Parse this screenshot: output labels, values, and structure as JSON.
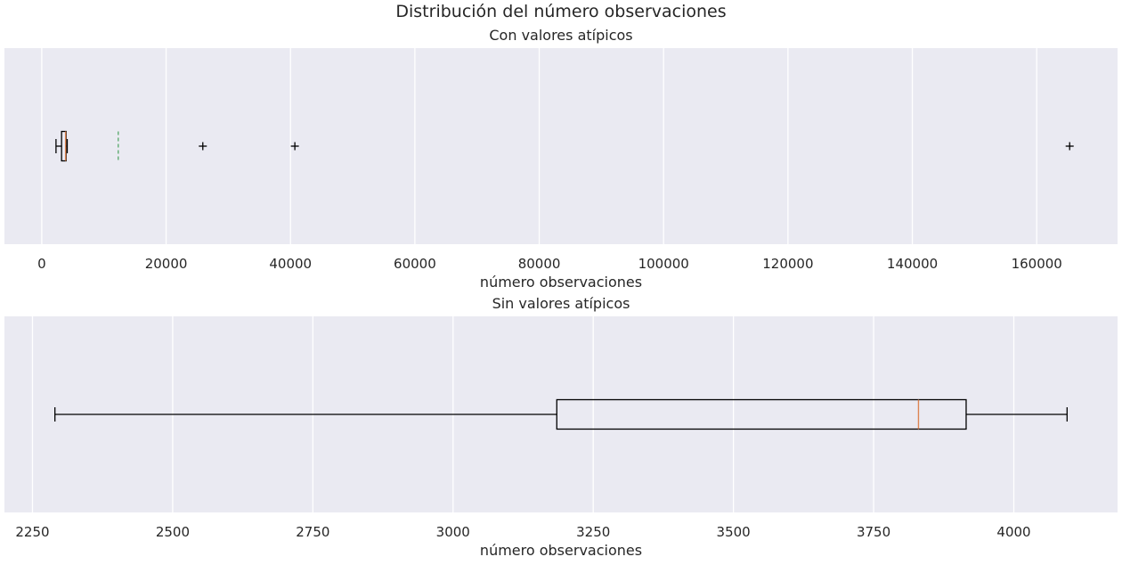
{
  "title": "Distribución del número observaciones",
  "chart_data": [
    {
      "type": "boxplot",
      "orientation": "horizontal",
      "subtitle": "Con valores atípicos",
      "xlabel": "número observaciones",
      "ylabel": "",
      "xlim": [
        -6000,
        173000
      ],
      "xticks": [
        0,
        20000,
        40000,
        60000,
        80000,
        100000,
        120000,
        140000,
        160000
      ],
      "grid": true,
      "box": {
        "whisker_low": 2290,
        "q1": 3185,
        "median": 3830,
        "q3": 3915,
        "whisker_high": 4095,
        "mean": 12300,
        "outliers": [
          25900,
          40700,
          165300
        ]
      },
      "mean_line": true
    },
    {
      "type": "boxplot",
      "orientation": "horizontal",
      "subtitle": "Sin valores atípicos",
      "xlabel": "número observaciones",
      "ylabel": "",
      "xlim": [
        2200,
        4185
      ],
      "xticks": [
        2250,
        2500,
        2750,
        3000,
        3250,
        3500,
        3750,
        4000
      ],
      "grid": true,
      "box": {
        "whisker_low": 2290,
        "q1": 3185,
        "median": 3830,
        "q3": 3915,
        "whisker_high": 4095,
        "outliers": []
      },
      "mean_line": false
    }
  ],
  "colors": {
    "plot_background": "#EAEAF2",
    "grid": "#FFFFFF",
    "box": "#000000",
    "median": "#DD8452",
    "mean": "#55A868"
  }
}
